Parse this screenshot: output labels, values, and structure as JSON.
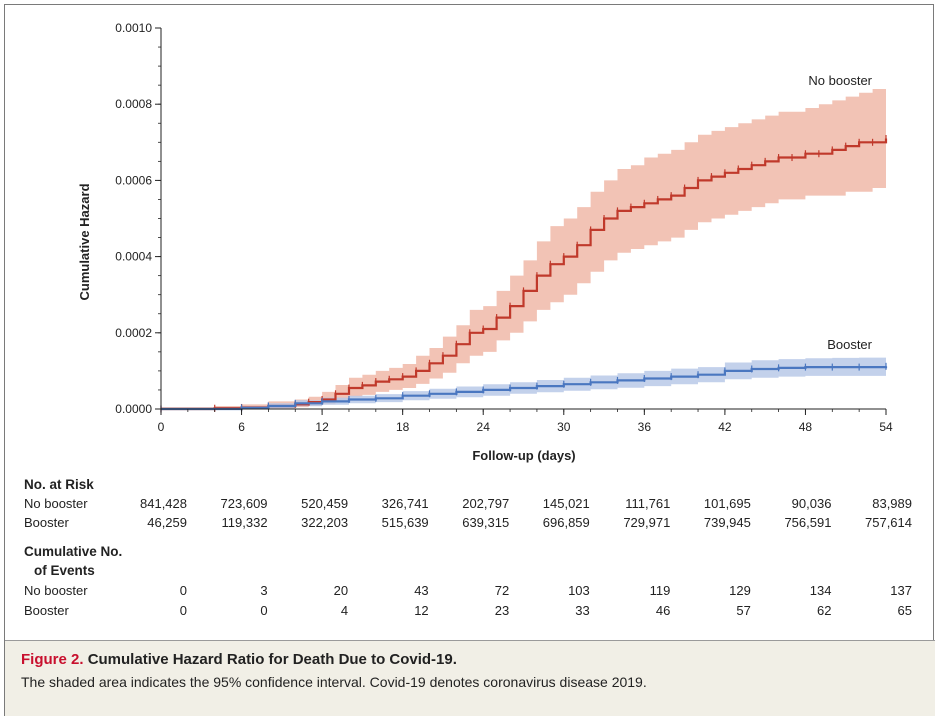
{
  "chart_data": {
    "type": "line",
    "step": true,
    "ylabel": "Cumulative Hazard",
    "xlabel": "Follow-up (days)",
    "xlim": [
      0,
      54
    ],
    "ylim": [
      0,
      0.001
    ],
    "x_ticks": [
      0,
      6,
      12,
      18,
      24,
      30,
      36,
      42,
      48,
      54
    ],
    "y_ticks": [
      0,
      0.0002,
      0.0004,
      0.0006,
      0.0008,
      0.001
    ],
    "y_tick_labels": [
      "0.0000",
      "0.0002",
      "0.0004",
      "0.0006",
      "0.0008",
      "0.0010"
    ],
    "grid": false,
    "series": [
      {
        "name": "No booster",
        "color": "#c0392b",
        "band_color": "#f0b9a8",
        "x": [
          0,
          4,
          6,
          8,
          10,
          11,
          12,
          13,
          14,
          15,
          16,
          17,
          18,
          19,
          20,
          21,
          22,
          23,
          24,
          25,
          26,
          27,
          28,
          29,
          30,
          31,
          32,
          33,
          34,
          35,
          36,
          37,
          38,
          39,
          40,
          41,
          42,
          43,
          44,
          45,
          46,
          47,
          48,
          49,
          50,
          51,
          52,
          53,
          54
        ],
        "y": [
          0,
          2e-06,
          4e-06,
          8e-06,
          1.2e-05,
          1.8e-05,
          2.5e-05,
          4e-05,
          5.5e-05,
          6.2e-05,
          7.2e-05,
          7.8e-05,
          8.5e-05,
          0.0001,
          0.00012,
          0.00014,
          0.00017,
          0.0002,
          0.00021,
          0.00024,
          0.00027,
          0.00031,
          0.00035,
          0.00038,
          0.0004,
          0.00043,
          0.00047,
          0.0005,
          0.00052,
          0.00053,
          0.00054,
          0.00055,
          0.00056,
          0.00058,
          0.0006,
          0.00061,
          0.00062,
          0.00063,
          0.00064,
          0.00065,
          0.00066,
          0.00066,
          0.00067,
          0.00067,
          0.00068,
          0.00069,
          0.0007,
          0.0007,
          0.00071
        ],
        "lower": [
          0,
          0,
          0,
          2e-06,
          5e-06,
          8e-06,
          1.2e-05,
          2.2e-05,
          3.2e-05,
          3.7e-05,
          4.5e-05,
          5e-05,
          5.5e-05,
          6.6e-05,
          8e-05,
          9.5e-05,
          0.00012,
          0.00014,
          0.00015,
          0.00018,
          0.0002,
          0.00023,
          0.00026,
          0.00028,
          0.0003,
          0.00033,
          0.00036,
          0.00039,
          0.00041,
          0.00042,
          0.00043,
          0.00044,
          0.00045,
          0.00047,
          0.00049,
          0.0005,
          0.00051,
          0.00052,
          0.00053,
          0.00054,
          0.00055,
          0.00055,
          0.00056,
          0.00056,
          0.00056,
          0.00057,
          0.00057,
          0.00058,
          0.00058
        ],
        "upper": [
          5e-06,
          8e-06,
          1.2e-05,
          2e-05,
          2.5e-05,
          3.2e-05,
          4.5e-05,
          6.3e-05,
          8.2e-05,
          9e-05,
          0.0001,
          0.000108,
          0.000118,
          0.00014,
          0.00016,
          0.00019,
          0.00022,
          0.00026,
          0.00027,
          0.00031,
          0.00035,
          0.00039,
          0.00044,
          0.00048,
          0.0005,
          0.00053,
          0.00057,
          0.0006,
          0.00063,
          0.00064,
          0.00066,
          0.00067,
          0.00068,
          0.0007,
          0.00072,
          0.00073,
          0.00074,
          0.00075,
          0.00076,
          0.00077,
          0.00078,
          0.00078,
          0.00079,
          0.0008,
          0.00081,
          0.00082,
          0.00083,
          0.00084,
          0.00085
        ]
      },
      {
        "name": "Booster",
        "color": "#4a77c0",
        "band_color": "#b9c9e8",
        "x": [
          0,
          6,
          8,
          10,
          12,
          14,
          16,
          18,
          20,
          22,
          24,
          26,
          28,
          30,
          32,
          34,
          36,
          38,
          40,
          42,
          44,
          46,
          48,
          50,
          52,
          54
        ],
        "y": [
          0,
          3e-06,
          8e-06,
          1.5e-05,
          2e-05,
          2.5e-05,
          2.8e-05,
          3.5e-05,
          4e-05,
          4.5e-05,
          5e-05,
          5.5e-05,
          6e-05,
          6.5e-05,
          7e-05,
          7.5e-05,
          8e-05,
          8.5e-05,
          9e-05,
          0.0001,
          0.000105,
          0.000108,
          0.00011,
          0.00011,
          0.00011,
          0.000112
        ],
        "lower": [
          0,
          0,
          2e-06,
          7e-06,
          1.1e-05,
          1.5e-05,
          1.8e-05,
          2.3e-05,
          2.7e-05,
          3.1e-05,
          3.5e-05,
          4e-05,
          4.4e-05,
          4.8e-05,
          5.2e-05,
          5.6e-05,
          6e-05,
          6.5e-05,
          7e-05,
          7.8e-05,
          8.2e-05,
          8.5e-05,
          8.7e-05,
          8.7e-05,
          8.7e-05,
          8.8e-05
        ],
        "upper": [
          3e-06,
          7e-06,
          1.5e-05,
          2.3e-05,
          3e-05,
          3.5e-05,
          3.9e-05,
          4.7e-05,
          5.3e-05,
          5.9e-05,
          6.5e-05,
          7e-05,
          7.6e-05,
          8.2e-05,
          8.8e-05,
          9.4e-05,
          0.0001,
          0.000106,
          0.00011,
          0.000122,
          0.000128,
          0.000131,
          0.000133,
          0.000134,
          0.000135,
          0.000137
        ]
      }
    ]
  },
  "series_labels": [
    "No booster",
    "Booster"
  ],
  "risk_table": {
    "at_risk_header": "No. at Risk",
    "at_risk": [
      {
        "label": "No booster",
        "values": [
          "841,428",
          "723,609",
          "520,459",
          "326,741",
          "202,797",
          "145,021",
          "111,761",
          "101,695",
          "90,036",
          "83,989"
        ]
      },
      {
        "label": "Booster",
        "values": [
          "46,259",
          "119,332",
          "322,203",
          "515,639",
          "639,315",
          "696,859",
          "729,971",
          "739,945",
          "756,591",
          "757,614"
        ]
      }
    ],
    "events_header_line1": "Cumulative No.",
    "events_header_line2": "of Events",
    "events": [
      {
        "label": "No booster",
        "values": [
          "0",
          "3",
          "20",
          "43",
          "72",
          "103",
          "119",
          "129",
          "134",
          "137"
        ]
      },
      {
        "label": "Booster",
        "values": [
          "0",
          "0",
          "4",
          "12",
          "23",
          "33",
          "46",
          "57",
          "62",
          "65"
        ]
      }
    ]
  },
  "caption": {
    "label": "Figure 2.",
    "title": "Cumulative Hazard Ratio for Death Due to Covid-19.",
    "body": "The shaded area indicates the 95% confidence interval. Covid-19 denotes coronavirus disease 2019."
  }
}
